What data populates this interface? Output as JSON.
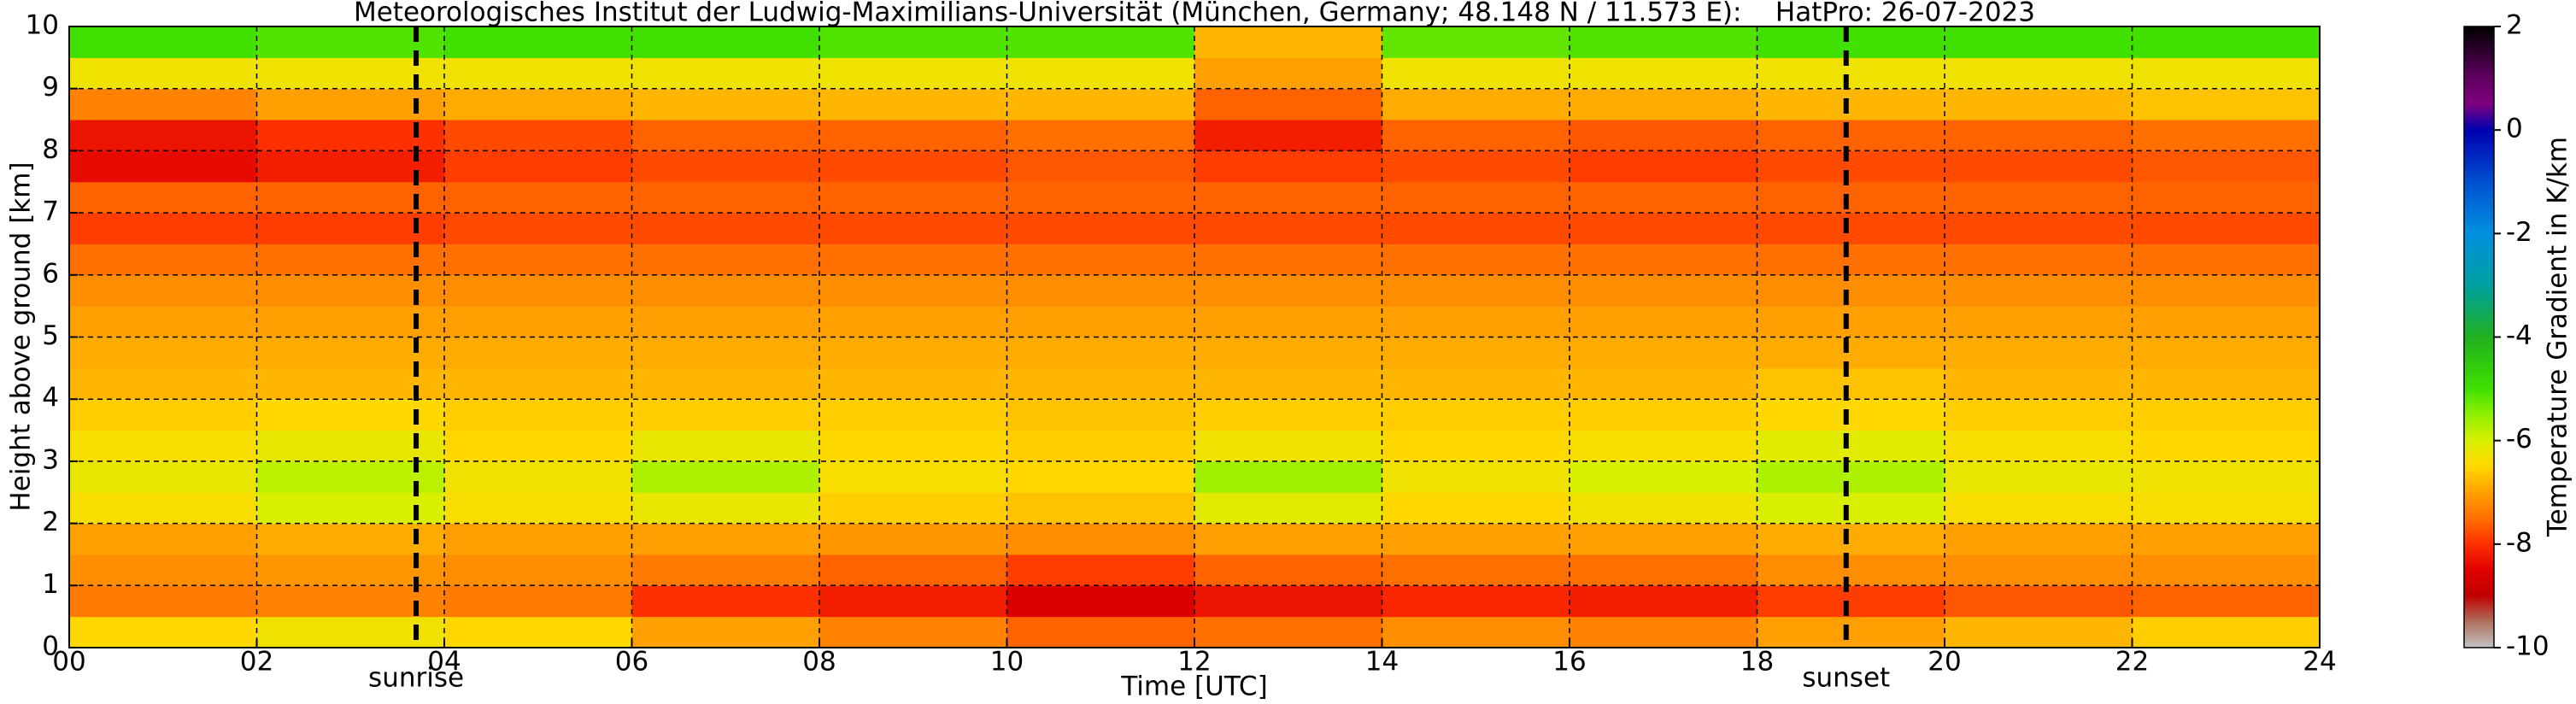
{
  "chart_data": {
    "type": "heatmap",
    "title": "Meteorologisches Institut der Ludwig-Maximilians-Universität (München, Germany; 48.148 N / 11.573 E):    HatPro: 26-07-2023",
    "xlabel": "Time [UTC]",
    "ylabel": "Height above ground [km]",
    "colorbar_label": "Temperature Gradient in K/km",
    "xbins": [
      0,
      2,
      4,
      6,
      8,
      10,
      12,
      14,
      16,
      18,
      20,
      22,
      24
    ],
    "ybins": [
      0,
      0.5,
      1,
      1.5,
      2,
      2.5,
      3,
      3.5,
      4,
      4.5,
      5,
      5.5,
      6,
      6.5,
      7,
      7.5,
      8,
      8.5,
      9,
      9.5,
      10
    ],
    "z": [
      [
        -6.5,
        -6.3,
        -6.5,
        -7,
        -7.3,
        -7.6,
        -7.5,
        -7.2,
        -7.3,
        -7,
        -6.8,
        -6.6
      ],
      [
        -7.4,
        -7.3,
        -7.4,
        -8,
        -8.2,
        -8.6,
        -8.3,
        -8.1,
        -8.2,
        -7.9,
        -7.7,
        -7.6
      ],
      [
        -7.2,
        -7.1,
        -7.2,
        -7.4,
        -7.6,
        -7.9,
        -7.6,
        -7.5,
        -7.5,
        -7.2,
        -7.2,
        -7.2
      ],
      [
        -7,
        -6.9,
        -7,
        -7,
        -7.1,
        -7.2,
        -7,
        -7,
        -7,
        -6.9,
        -7,
        -7
      ],
      [
        -6.4,
        -6,
        -6.4,
        -6.2,
        -6.6,
        -6.7,
        -6.1,
        -6.5,
        -6.3,
        -6,
        -6.4,
        -6.4
      ],
      [
        -6.2,
        -5.8,
        -6.3,
        -5.7,
        -6.4,
        -6.5,
        -5.6,
        -6.3,
        -6,
        -5.7,
        -6.2,
        -6.3
      ],
      [
        -6.4,
        -6.2,
        -6.5,
        -6.2,
        -6.5,
        -6.6,
        -6.3,
        -6.5,
        -6.4,
        -6.1,
        -6.4,
        -6.5
      ],
      [
        -6.6,
        -6.5,
        -6.6,
        -6.6,
        -6.6,
        -6.7,
        -6.6,
        -6.6,
        -6.6,
        -6.5,
        -6.6,
        -6.6
      ],
      [
        -6.8,
        -6.8,
        -6.8,
        -6.8,
        -6.8,
        -6.8,
        -6.8,
        -6.8,
        -6.8,
        -6.7,
        -6.8,
        -6.8
      ],
      [
        -6.9,
        -6.9,
        -6.9,
        -6.9,
        -6.9,
        -6.9,
        -6.9,
        -6.9,
        -6.9,
        -6.9,
        -6.9,
        -6.9
      ],
      [
        -7,
        -7,
        -7,
        -7,
        -7,
        -7,
        -7,
        -7,
        -7,
        -7,
        -7,
        -7
      ],
      [
        -7.2,
        -7.2,
        -7.2,
        -7.2,
        -7.2,
        -7.2,
        -7.2,
        -7.2,
        -7.2,
        -7.2,
        -7.2,
        -7.2
      ],
      [
        -7.5,
        -7.5,
        -7.5,
        -7.5,
        -7.5,
        -7.5,
        -7.5,
        -7.5,
        -7.5,
        -7.5,
        -7.5,
        -7.5
      ],
      [
        -7.9,
        -7.9,
        -7.8,
        -7.8,
        -7.8,
        -7.8,
        -7.8,
        -7.8,
        -7.8,
        -7.8,
        -7.8,
        -7.8
      ],
      [
        -7.6,
        -7.6,
        -7.6,
        -7.6,
        -7.6,
        -7.6,
        -7.6,
        -7.6,
        -7.6,
        -7.6,
        -7.6,
        -7.6
      ],
      [
        -8.4,
        -8.2,
        -7.9,
        -7.8,
        -7.8,
        -7.7,
        -7.9,
        -7.8,
        -7.9,
        -7.8,
        -7.8,
        -7.7
      ],
      [
        -8.3,
        -8,
        -7.8,
        -7.6,
        -7.6,
        -7.5,
        -8.2,
        -7.6,
        -7.7,
        -7.6,
        -7.6,
        -7.5
      ],
      [
        -7.3,
        -7,
        -6.9,
        -6.8,
        -6.8,
        -6.8,
        -7.6,
        -6.9,
        -6.9,
        -6.8,
        -6.8,
        -6.7
      ],
      [
        -6.3,
        -6.3,
        -6.3,
        -6.3,
        -6.3,
        -6.3,
        -7,
        -6.3,
        -6.3,
        -6.3,
        -6.3,
        -6.3
      ],
      [
        -5,
        -5.1,
        -5,
        -5,
        -5.1,
        -5.1,
        -6.8,
        -5.2,
        -5.1,
        -5,
        -5,
        -5
      ]
    ],
    "xlim": [
      0,
      24
    ],
    "xticks": [
      {
        "value": 0,
        "label": "00"
      },
      {
        "value": 2,
        "label": "02"
      },
      {
        "value": 4,
        "label": "04"
      },
      {
        "value": 6,
        "label": "06"
      },
      {
        "value": 8,
        "label": "08"
      },
      10,
      12,
      14,
      16,
      18,
      20,
      22,
      24
    ],
    "ylim": [
      0,
      10
    ],
    "yticks": [
      0,
      1,
      2,
      3,
      4,
      5,
      6,
      7,
      8,
      9,
      10
    ],
    "grid": true,
    "clim": [
      -10,
      2
    ],
    "cticks": [
      -10,
      -8,
      -6,
      -4,
      -2,
      0,
      2
    ],
    "colorscale": [
      [
        -10,
        "#c4c4c4"
      ],
      [
        -9.5,
        "#b07060"
      ],
      [
        -9,
        "#c00000"
      ],
      [
        -8.5,
        "#e00000"
      ],
      [
        -8,
        "#ff3000"
      ],
      [
        -7.5,
        "#ff7000"
      ],
      [
        -7,
        "#ffa000"
      ],
      [
        -6.5,
        "#ffd800"
      ],
      [
        -6,
        "#d8f000"
      ],
      [
        -5.5,
        "#90f000"
      ],
      [
        -5,
        "#40e000"
      ],
      [
        -4,
        "#20b020"
      ],
      [
        -3,
        "#00a0a0"
      ],
      [
        -2,
        "#0090e0"
      ],
      [
        -1,
        "#0050d0"
      ],
      [
        0,
        "#0000b0"
      ],
      [
        0.5,
        "#800080"
      ],
      [
        1,
        "#600060"
      ],
      [
        2,
        "#000000"
      ]
    ],
    "annotations": [
      {
        "x": 3.7,
        "text": "sunrise"
      },
      {
        "x": 18.95,
        "text": "sunset"
      }
    ]
  }
}
